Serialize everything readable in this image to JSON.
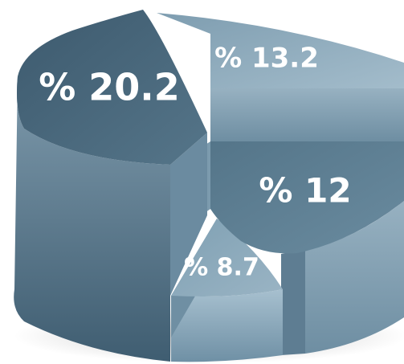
{
  "chart_data": {
    "type": "pie",
    "style": "3d-exploded",
    "title": "",
    "slices": [
      {
        "label": "% 20.2",
        "value": 20.2,
        "color": "#46667c"
      },
      {
        "label": "% 13.2",
        "value": 13.2,
        "color": "#8aa7b9"
      },
      {
        "label": "% 12",
        "value": 12,
        "color": "#5d7e93"
      },
      {
        "label": "% 8.7",
        "value": 8.7,
        "color": "#88a8bb"
      }
    ],
    "legend": "none"
  }
}
